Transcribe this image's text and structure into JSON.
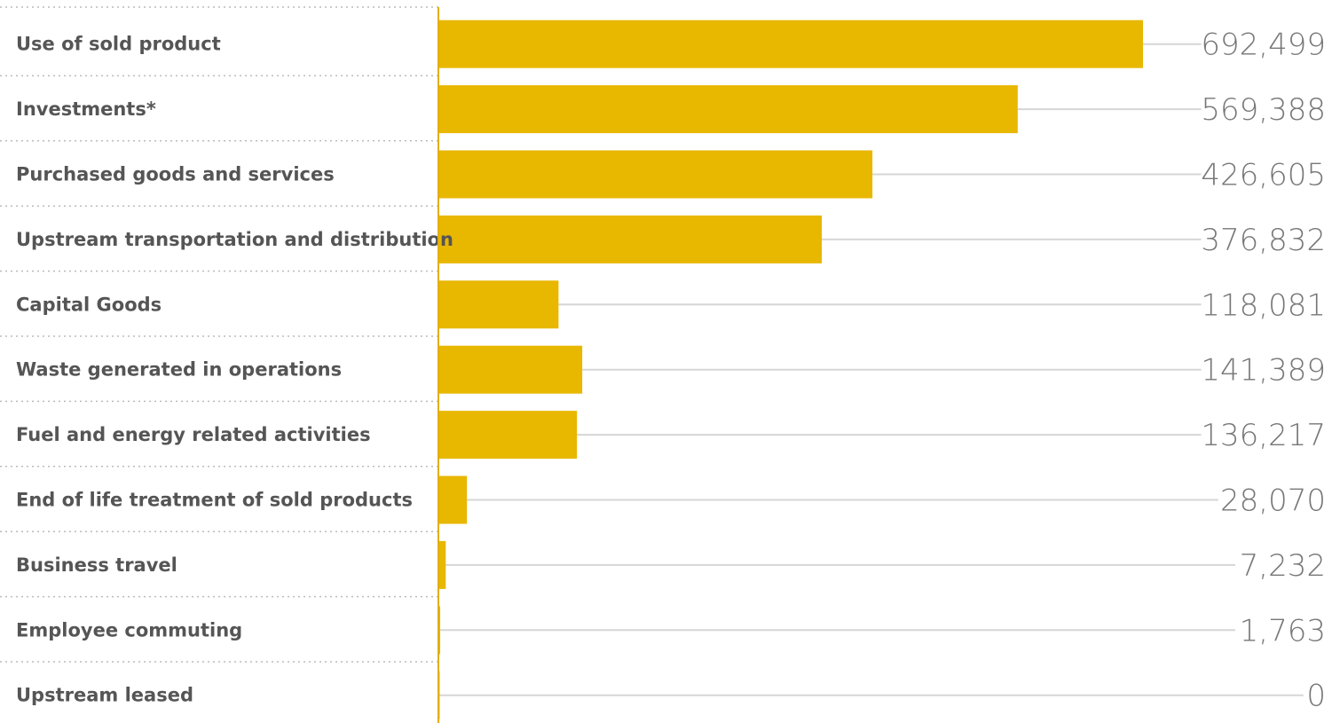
{
  "chart_data": {
    "type": "bar",
    "orientation": "horizontal",
    "categories": [
      "Use of sold product",
      "Investments*",
      "Purchased goods and services",
      "Upstream transportation and distribution",
      "Capital Goods",
      "Waste generated in operations",
      "Fuel and energy related activities",
      "End of life treatment of sold products",
      "Business travel",
      "Employee commuting",
      "Upstream leased"
    ],
    "values": [
      692499,
      569388,
      426605,
      376832,
      118081,
      141389,
      136217,
      28070,
      7232,
      1763,
      0
    ],
    "value_labels": [
      "692,499",
      "569,388",
      "426,605",
      "376,832",
      "118,081",
      "141,389",
      "136,217",
      "28,070",
      "7,232",
      "1,763",
      "0"
    ],
    "xlim": [
      0,
      692499
    ],
    "title": "",
    "xlabel": "",
    "ylabel": "",
    "grid": false,
    "legend": "none",
    "colors": {
      "bar": "#E8B700",
      "axis": "#E2AE00",
      "leader_line": "#D6D6D6",
      "separator": "#BBBBBB",
      "category_text": "#555555",
      "value_text": "#777777"
    }
  }
}
